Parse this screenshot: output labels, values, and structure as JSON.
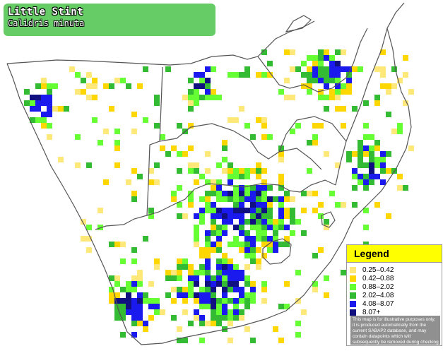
{
  "title": {
    "common_name": "Little Stint",
    "scientific_name": "Calidris minuta"
  },
  "legend": {
    "heading": "Legend",
    "items": [
      {
        "label": "0.25–0.42",
        "color": "#ffe87a"
      },
      {
        "label": "0.42–0.88",
        "color": "#ffd700"
      },
      {
        "label": "0.88–2.02",
        "color": "#66ff33"
      },
      {
        "label": "2.02–4.08",
        "color": "#33bb33"
      },
      {
        "label": "4.08–8.07",
        "color": "#1a1aee"
      },
      {
        "label": "8.07+",
        "color": "#101080"
      }
    ],
    "note": "This map is for illustrative purposes only; it is produced automatically from the current SABAP2 database, and may contain datapoints which will subsequently be removed during checking operations."
  },
  "colors": {
    "background": "#ffffff",
    "border": "#555555",
    "title_box": "#66cc66"
  }
}
